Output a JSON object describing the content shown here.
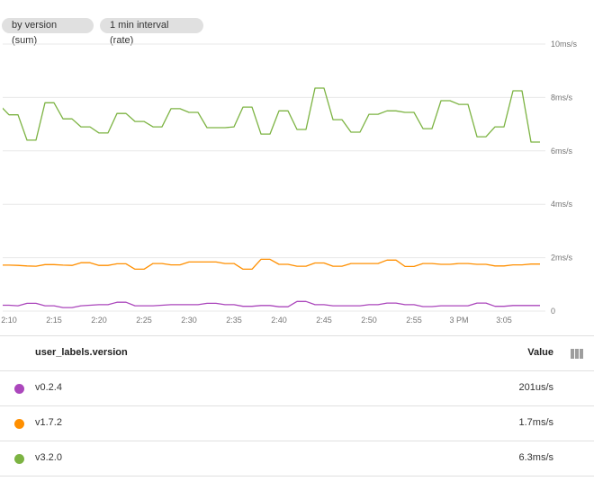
{
  "chips": [
    "by version (sum)",
    "1 min interval (rate)"
  ],
  "chart_data": {
    "type": "line",
    "x": [
      "2:09",
      "2:10",
      "2:11",
      "2:12",
      "2:13",
      "2:14",
      "2:15",
      "2:16",
      "2:17",
      "2:18",
      "2:19",
      "2:20",
      "2:21",
      "2:22",
      "2:23",
      "2:24",
      "2:25",
      "2:26",
      "2:27",
      "2:28",
      "2:29",
      "2:30",
      "2:31",
      "2:32",
      "2:33",
      "2:34",
      "2:35",
      "2:36",
      "2:37",
      "2:38",
      "2:39",
      "2:40",
      "2:41",
      "2:42",
      "2:43",
      "2:44",
      "2:45",
      "2:46",
      "2:47",
      "2:48",
      "2:49",
      "2:50",
      "2:51",
      "2:52",
      "2:53",
      "2:54",
      "2:55",
      "2:56",
      "2:57",
      "2:58",
      "2:59",
      "3:00",
      "3:01",
      "3:02",
      "3:03",
      "3:04",
      "3:05",
      "3:06",
      "3:07",
      "3:08",
      "3:09"
    ],
    "x_ticks": [
      "2:10",
      "2:15",
      "2:20",
      "2:25",
      "2:30",
      "2:35",
      "2:40",
      "2:45",
      "2:50",
      "2:55",
      "3 PM",
      "3:05"
    ],
    "y_ticks": [
      "0",
      "2ms/s",
      "4ms/s",
      "6ms/s",
      "8ms/s",
      "10ms/s"
    ],
    "ylim": [
      0,
      10
    ],
    "y_unit": "ms/s",
    "grid": true,
    "series": [
      {
        "name": "v0.2.4",
        "color": "#ab47bc",
        "values": [
          0.22,
          0.22,
          0.2,
          0.29,
          0.29,
          0.2,
          0.2,
          0.13,
          0.13,
          0.2,
          0.22,
          0.24,
          0.24,
          0.33,
          0.33,
          0.2,
          0.2,
          0.2,
          0.22,
          0.24,
          0.24,
          0.24,
          0.24,
          0.29,
          0.29,
          0.24,
          0.24,
          0.18,
          0.18,
          0.21,
          0.21,
          0.16,
          0.16,
          0.36,
          0.36,
          0.24,
          0.24,
          0.2,
          0.2,
          0.2,
          0.2,
          0.24,
          0.24,
          0.3,
          0.3,
          0.24,
          0.24,
          0.17,
          0.17,
          0.2,
          0.2,
          0.2,
          0.2,
          0.3,
          0.3,
          0.18,
          0.18,
          0.21,
          0.21,
          0.21,
          0.21
        ]
      },
      {
        "name": "v1.7.2",
        "color": "#ff8f00",
        "values": [
          1.72,
          1.72,
          1.71,
          1.69,
          1.68,
          1.74,
          1.74,
          1.72,
          1.71,
          1.81,
          1.81,
          1.71,
          1.71,
          1.77,
          1.77,
          1.57,
          1.57,
          1.78,
          1.78,
          1.73,
          1.73,
          1.84,
          1.84,
          1.84,
          1.84,
          1.78,
          1.78,
          1.57,
          1.57,
          1.94,
          1.94,
          1.75,
          1.75,
          1.68,
          1.68,
          1.8,
          1.8,
          1.68,
          1.68,
          1.78,
          1.78,
          1.78,
          1.78,
          1.91,
          1.91,
          1.67,
          1.67,
          1.78,
          1.78,
          1.75,
          1.75,
          1.78,
          1.78,
          1.75,
          1.75,
          1.69,
          1.69,
          1.73,
          1.73,
          1.76,
          1.76
        ]
      },
      {
        "name": "v3.2.0",
        "color": "#7cb342",
        "values": [
          7.7,
          7.35,
          7.35,
          6.4,
          6.4,
          7.8,
          7.8,
          7.2,
          7.2,
          6.9,
          6.9,
          6.67,
          6.67,
          7.4,
          7.4,
          7.1,
          7.1,
          6.9,
          6.9,
          7.58,
          7.58,
          7.44,
          7.44,
          6.87,
          6.87,
          6.87,
          6.9,
          7.64,
          7.64,
          6.63,
          6.63,
          7.5,
          7.5,
          6.8,
          6.8,
          8.35,
          8.35,
          7.17,
          7.17,
          6.7,
          6.7,
          7.37,
          7.37,
          7.5,
          7.5,
          7.44,
          7.44,
          6.83,
          6.83,
          7.88,
          7.88,
          7.74,
          7.74,
          6.53,
          6.53,
          6.9,
          6.9,
          8.25,
          8.25,
          6.33,
          6.33
        ]
      }
    ]
  },
  "legend": {
    "column_header": "user_labels.version",
    "value_header": "Value",
    "column_picker_icon": "columns-icon",
    "rows": [
      {
        "label": "v0.2.4",
        "value": "201us/s",
        "color": "#ab47bc"
      },
      {
        "label": "v1.7.2",
        "value": "1.7ms/s",
        "color": "#ff8f00"
      },
      {
        "label": "v3.2.0",
        "value": "6.3ms/s",
        "color": "#7cb342"
      }
    ]
  }
}
